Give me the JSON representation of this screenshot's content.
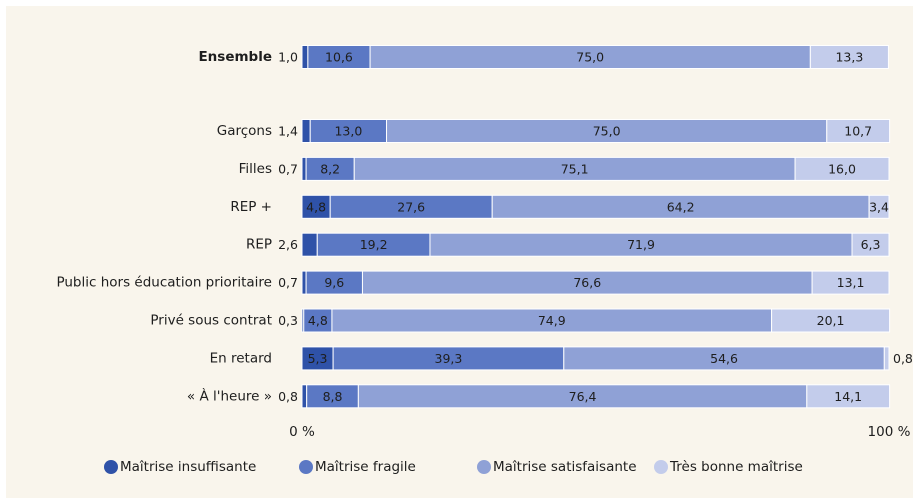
{
  "chart_data": {
    "type": "stacked-barh",
    "categories": [
      "Ensemble",
      "Garçons",
      "Filles",
      "REP +",
      "REP",
      "Public hors éducation prioritaire",
      "Privé sous contrat",
      "En retard",
      "« À l'heure »"
    ],
    "series": [
      {
        "name": "Maîtrise insuffisante",
        "color": "#2f52a8",
        "values": [
          1.0,
          1.4,
          0.7,
          4.8,
          2.6,
          0.7,
          0.3,
          5.3,
          0.8
        ],
        "value_labels": [
          "1,0",
          "1,4",
          "0,7",
          "4,8",
          "2,6",
          "0,7",
          "0,3",
          "5,3",
          "0,8"
        ]
      },
      {
        "name": "Maîtrise fragile",
        "color": "#5b78c4",
        "values": [
          10.6,
          13.0,
          8.2,
          27.6,
          19.2,
          9.6,
          4.8,
          39.3,
          8.8
        ],
        "value_labels": [
          "10,6",
          "13,0",
          "8,2",
          "27,6",
          "19,2",
          "9,6",
          "4,8",
          "39,3",
          "8,8"
        ]
      },
      {
        "name": "Maîtrise satisfaisante",
        "color": "#8fa1d6",
        "values": [
          75.0,
          75.0,
          75.1,
          64.2,
          71.9,
          76.6,
          74.9,
          54.6,
          76.4
        ],
        "value_labels": [
          "75,0",
          "75,0",
          "75,1",
          "64,2",
          "71,9",
          "76,6",
          "74,9",
          "54,6",
          "76,4"
        ]
      },
      {
        "name": "Très bonne maîtrise",
        "color": "#c3cceb",
        "values": [
          13.3,
          10.7,
          16.0,
          3.4,
          6.3,
          13.1,
          20.1,
          0.8,
          14.1
        ],
        "value_labels": [
          "13,3",
          "10,7",
          "16,0",
          "3,4",
          "6,3",
          "13,1",
          "20,1",
          "0,8",
          "14,1"
        ]
      }
    ],
    "xlim": [
      0,
      100
    ],
    "xticks": [
      {
        "value": 0,
        "label": "0 %"
      },
      {
        "value": 100,
        "label": "100 %"
      }
    ],
    "legend": "bottom"
  }
}
